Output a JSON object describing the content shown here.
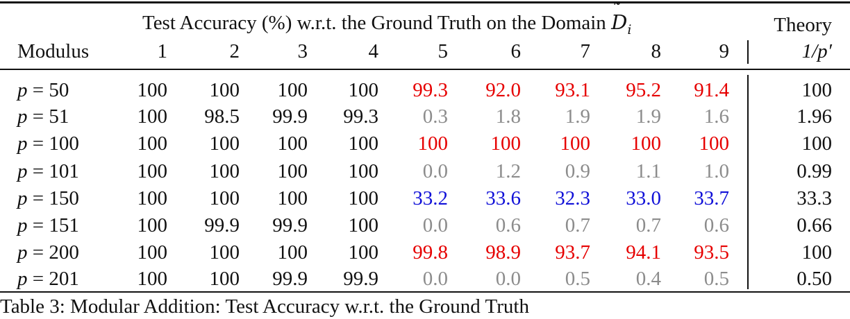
{
  "table": {
    "header": {
      "span_text": "Test Accuracy (%) w.r.t. the Ground Truth on the Domain",
      "domain_symbol": "D",
      "domain_subscript": "i",
      "theory_label": "Theory",
      "theory_expr": "1/p′",
      "modulus_label": "Modulus",
      "domain_columns": [
        "1",
        "2",
        "3",
        "4",
        "5",
        "6",
        "7",
        "8",
        "9"
      ]
    },
    "rows": [
      {
        "modulus": "p = 50",
        "values": [
          "100",
          "100",
          "100",
          "100",
          "99.3",
          "92.0",
          "93.1",
          "95.2",
          "91.4"
        ],
        "tones": [
          "black",
          "black",
          "black",
          "black",
          "red",
          "red",
          "red",
          "red",
          "red"
        ],
        "theory": "100"
      },
      {
        "modulus": "p = 51",
        "values": [
          "100",
          "98.5",
          "99.9",
          "99.3",
          "0.3",
          "1.8",
          "1.9",
          "1.9",
          "1.6"
        ],
        "tones": [
          "black",
          "black",
          "black",
          "black",
          "gray",
          "gray",
          "gray",
          "gray",
          "gray"
        ],
        "theory": "1.96"
      },
      {
        "modulus": "p = 100",
        "values": [
          "100",
          "100",
          "100",
          "100",
          "100",
          "100",
          "100",
          "100",
          "100"
        ],
        "tones": [
          "black",
          "black",
          "black",
          "black",
          "red",
          "red",
          "red",
          "red",
          "red"
        ],
        "theory": "100"
      },
      {
        "modulus": "p = 101",
        "values": [
          "100",
          "100",
          "100",
          "100",
          "0.0",
          "1.2",
          "0.9",
          "1.1",
          "1.0"
        ],
        "tones": [
          "black",
          "black",
          "black",
          "black",
          "gray",
          "gray",
          "gray",
          "gray",
          "gray"
        ],
        "theory": "0.99"
      },
      {
        "modulus": "p = 150",
        "values": [
          "100",
          "100",
          "100",
          "100",
          "33.2",
          "33.6",
          "32.3",
          "33.0",
          "33.7"
        ],
        "tones": [
          "black",
          "black",
          "black",
          "black",
          "blue",
          "blue",
          "blue",
          "blue",
          "blue"
        ],
        "theory": "33.3"
      },
      {
        "modulus": "p = 151",
        "values": [
          "100",
          "99.9",
          "99.9",
          "100",
          "0.0",
          "0.6",
          "0.7",
          "0.7",
          "0.6"
        ],
        "tones": [
          "black",
          "black",
          "black",
          "black",
          "gray",
          "gray",
          "gray",
          "gray",
          "gray"
        ],
        "theory": "0.66"
      },
      {
        "modulus": "p = 200",
        "values": [
          "100",
          "100",
          "100",
          "100",
          "99.8",
          "98.9",
          "93.7",
          "94.1",
          "93.5"
        ],
        "tones": [
          "black",
          "black",
          "black",
          "black",
          "red",
          "red",
          "red",
          "red",
          "red"
        ],
        "theory": "100"
      },
      {
        "modulus": "p = 201",
        "values": [
          "100",
          "100",
          "99.9",
          "99.9",
          "0.0",
          "0.0",
          "0.5",
          "0.4",
          "0.5"
        ],
        "tones": [
          "black",
          "black",
          "black",
          "black",
          "gray",
          "gray",
          "gray",
          "gray",
          "gray"
        ],
        "theory": "0.50"
      }
    ],
    "tone_colors": {
      "black": "#111111",
      "red": "#e60000",
      "gray": "#8c8c8c",
      "blue": "#1010d8"
    }
  },
  "caption": {
    "text": "Table 3: Modular Addition: Test Accuracy w.r.t. the Ground Truth"
  }
}
